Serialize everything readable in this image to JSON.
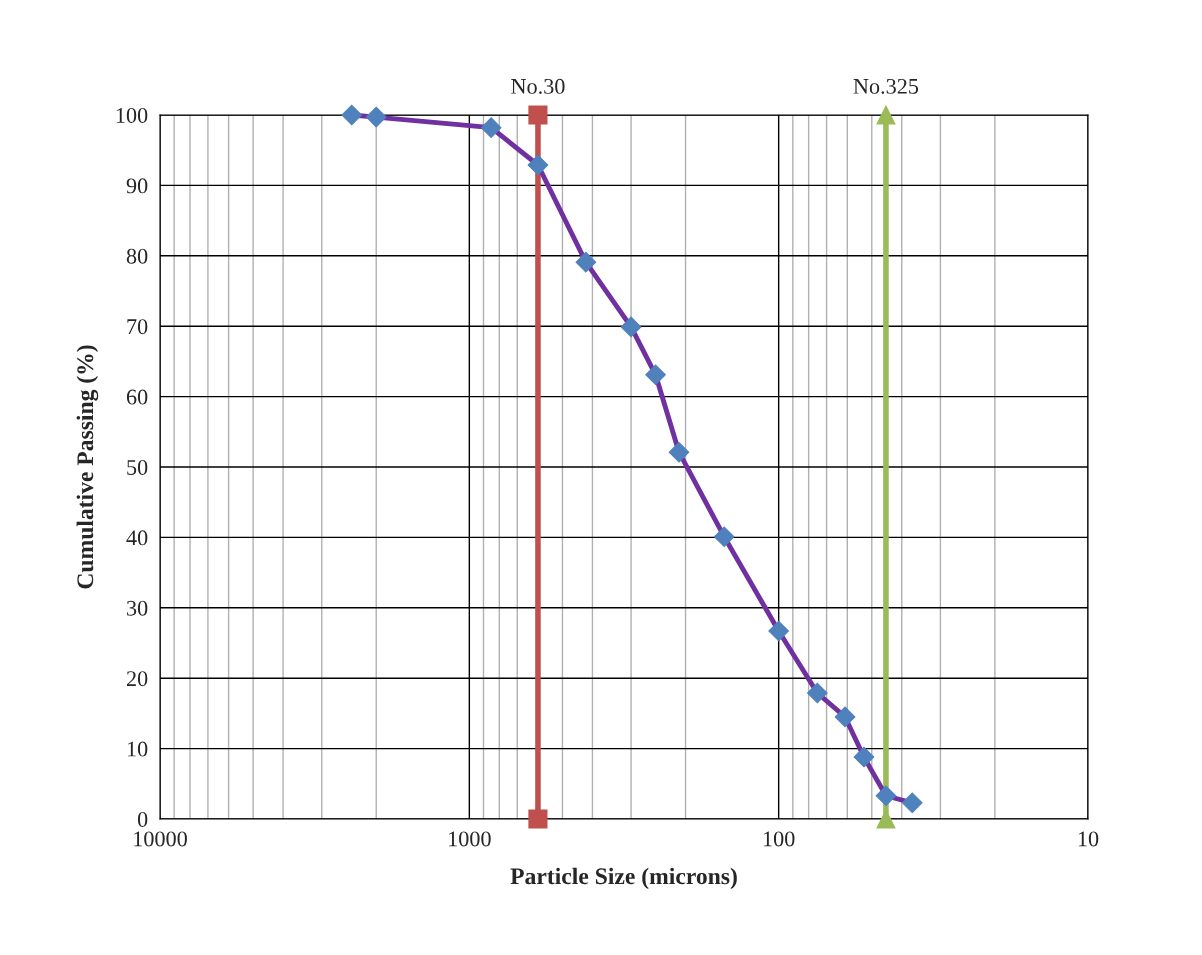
{
  "chart_data": {
    "type": "line",
    "xlabel": "Particle Size (microns)",
    "ylabel": "Cumulative Passing (%)",
    "log": "x",
    "xlim": [
      10000,
      10
    ],
    "xticks": [
      10000,
      1000,
      100,
      10
    ],
    "ylim": [
      0,
      100
    ],
    "yticks": [
      0,
      10,
      20,
      30,
      40,
      50,
      60,
      70,
      80,
      90,
      100
    ],
    "grid": true,
    "legend": false,
    "series": [
      {
        "color": "#7030a0",
        "marker": "diamond",
        "x": [
          2400,
          2000,
          850,
          600,
          420,
          300,
          250,
          210,
          150,
          100,
          75,
          61,
          53,
          45,
          37
        ],
        "values": [
          100,
          99.7,
          98.2,
          92.9,
          79.1,
          69.9,
          63.1,
          52.1,
          40.1,
          26.7,
          17.9,
          14.5,
          8.8,
          3.3,
          2.3
        ]
      },
      {
        "name": "No.30",
        "color": "#c0504d",
        "marker": "square",
        "x": [
          600,
          600
        ],
        "values": [
          0,
          100
        ]
      },
      {
        "name": "No.325",
        "color": "#9bbb59",
        "marker": "triangle",
        "x": [
          45,
          45
        ],
        "values": [
          0,
          100
        ]
      }
    ]
  }
}
